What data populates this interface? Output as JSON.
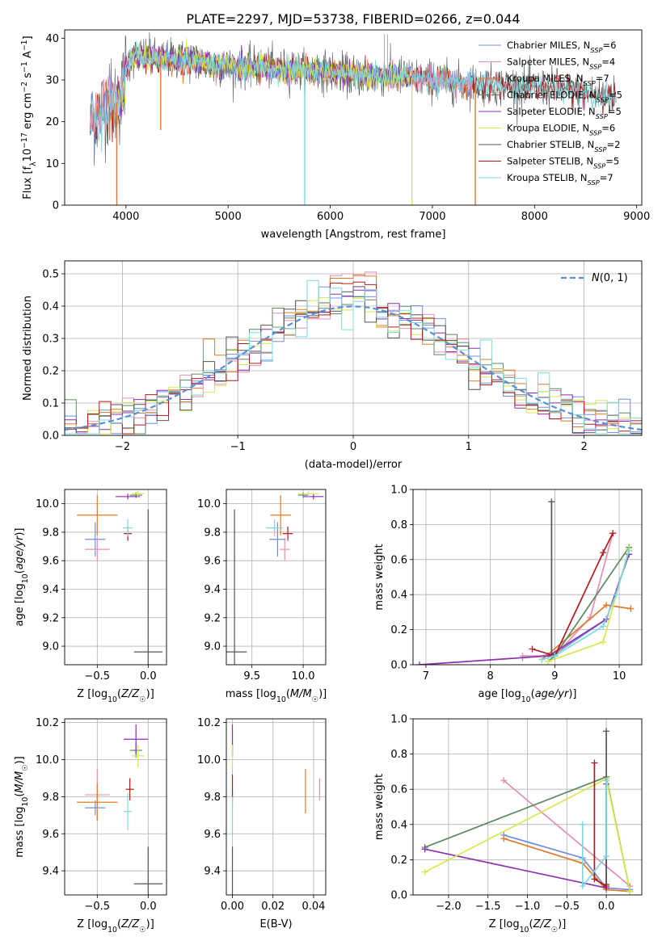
{
  "figure": {
    "title": "PLATE=2297, MJD=53738, FIBERID=0266, z=0.044"
  },
  "series_colors": {
    "Chabrier MILES": "#6e8fe0",
    "Salpeter MILES": "#e48fb8",
    "Kroupa MILES": "#e07a2a",
    "Chabrier ELODIE": "#5a8a62",
    "Salpeter ELODIE": "#8e2fb0",
    "Kroupa ELODIE": "#d8e84a",
    "Chabrier STELIB": "#555555",
    "Salpeter STELIB": "#b01c1c",
    "Kroupa STELIB": "#7dd8e0"
  },
  "chart_data": [
    {
      "id": "spectrum",
      "type": "line",
      "xlabel": "wavelength [Angstrom, rest frame]",
      "ylabel": "Flux [f_λ 10^-17 erg cm^-2 s^-1 A^-1]",
      "xlim": [
        3400,
        9050
      ],
      "ylim": [
        0,
        42
      ],
      "xticks": [
        4000,
        5000,
        6000,
        7000,
        8000,
        9000
      ],
      "yticks": [
        0,
        10,
        20,
        30,
        40
      ],
      "legend_position": "top-right",
      "legend": [
        {
          "name": "Chabrier MILES",
          "text": "Chabrier MILES, N",
          "sub": "SSP",
          "tail": "=6"
        },
        {
          "name": "Salpeter MILES",
          "text": "Salpeter MILES, N",
          "sub": "SSP",
          "tail": "=4"
        },
        {
          "name": "Kroupa MILES",
          "text": "Kroupa MILES, N",
          "sub": "SSP",
          "tail": "=7"
        },
        {
          "name": "Chabrier ELODIE",
          "text": "Chabrier ELODIE, N",
          "sub": "SSP",
          "tail": "=5"
        },
        {
          "name": "Salpeter ELODIE",
          "text": "Salpeter ELODIE, N",
          "sub": "SSP",
          "tail": "=5"
        },
        {
          "name": "Kroupa ELODIE",
          "text": "Kroupa ELODIE, N",
          "sub": "SSP",
          "tail": "=6"
        },
        {
          "name": "Chabrier STELIB",
          "text": "Chabrier STELIB, N",
          "sub": "SSP",
          "tail": "=2"
        },
        {
          "name": "Salpeter STELIB",
          "text": "Salpeter STELIB, N",
          "sub": "SSP",
          "tail": "=5"
        },
        {
          "name": "Kroupa STELIB",
          "text": "Kroupa STELIB, N",
          "sub": "SSP",
          "tail": "=7"
        }
      ],
      "continuum_x": [
        3650,
        3800,
        3950,
        4000,
        4050,
        4150,
        4300,
        4500,
        4800,
        5000,
        5300,
        5600,
        6000,
        6300,
        6600,
        7000,
        7400,
        7800,
        8200,
        8600,
        8800
      ],
      "continuum_y": [
        19,
        24,
        25,
        33,
        35,
        36,
        35,
        35,
        34,
        33,
        33,
        32.5,
        32,
        31,
        31,
        30,
        29,
        28.5,
        28,
        26.5,
        26
      ],
      "series_ranges": {
        "Chabrier MILES": [
          3650,
          7400
        ],
        "Salpeter MILES": [
          3650,
          7400
        ],
        "Kroupa MILES": [
          3650,
          7400
        ],
        "Chabrier ELODIE": [
          3900,
          6800
        ],
        "Salpeter ELODIE": [
          3900,
          6800
        ],
        "Kroupa ELODIE": [
          3900,
          6800
        ],
        "Chabrier STELIB": [
          3650,
          8800
        ],
        "Salpeter STELIB": [
          3650,
          8800
        ],
        "Kroupa STELIB": [
          3650,
          8800
        ]
      },
      "drops": [
        {
          "x": 3910,
          "to": 0,
          "series": "Kroupa MILES"
        },
        {
          "x": 4340,
          "to": 18,
          "series": "Kroupa MILES"
        },
        {
          "x": 5750,
          "to": 0,
          "series": "Kroupa STELIB"
        },
        {
          "x": 6800,
          "to": 0,
          "series": "Kroupa ELODIE"
        },
        {
          "x": 7420,
          "to": 0,
          "series": "Kroupa MILES"
        }
      ],
      "spikes": [
        {
          "x": 6530,
          "to": 41
        },
        {
          "x": 6560,
          "to": 41
        }
      ]
    },
    {
      "id": "residuals",
      "type": "histogram",
      "xlabel": "(data-model)/error",
      "ylabel": "Normed distribution",
      "xlim": [
        -2.5,
        2.5
      ],
      "ylim": [
        0,
        0.54
      ],
      "xticks": [
        -2,
        -1,
        0,
        1,
        2
      ],
      "yticks": [
        0.0,
        0.1,
        0.2,
        0.3,
        0.4,
        0.5
      ],
      "grid": true,
      "legend_position": "top-right",
      "legend_label": "N(0,1)",
      "bins": 50,
      "reference_curve": "gaussian mean 0 sigma 1",
      "peak_values": {
        "Salpeter MILES": 0.51,
        "Kroupa MILES": 0.5,
        "Salpeter STELIB": 0.48,
        "Salpeter ELODIE": 0.45,
        "Chabrier MILES": 0.43
      }
    },
    {
      "id": "age_vs_Z",
      "type": "errorbar",
      "xlabel": "Z [log10(Z/Z☉)]",
      "ylabel": "age  [log10(age/yr)]",
      "xlim": [
        -0.82,
        0.18
      ],
      "ylim": [
        8.87,
        10.1
      ],
      "xticks": [
        -0.5,
        0.0
      ],
      "yticks": [
        9.0,
        9.2,
        9.4,
        9.6,
        9.8,
        10.0
      ],
      "grid": true,
      "points": [
        {
          "series": "Chabrier MILES",
          "x": -0.52,
          "y": 9.75,
          "xerr": 0.1,
          "yerr": 0.12
        },
        {
          "series": "Salpeter MILES",
          "x": -0.5,
          "y": 9.68,
          "xerr": 0.12,
          "yerr": 0.08
        },
        {
          "series": "Kroupa MILES",
          "x": -0.5,
          "y": 9.92,
          "xerr": 0.2,
          "yerr": 0.14
        },
        {
          "series": "Chabrier ELODIE",
          "x": -0.12,
          "y": 10.06,
          "xerr": 0.06,
          "yerr": 0.02
        },
        {
          "series": "Salpeter ELODIE",
          "x": -0.2,
          "y": 10.05,
          "xerr": 0.12,
          "yerr": 0.02
        },
        {
          "series": "Kroupa ELODIE",
          "x": -0.1,
          "y": 10.07,
          "xerr": 0.06,
          "yerr": 0.02
        },
        {
          "series": "Chabrier STELIB",
          "x": 0.0,
          "y": 8.96,
          "xerr": 0.14,
          "yerr": 1.0
        },
        {
          "series": "Salpeter STELIB",
          "x": -0.2,
          "y": 9.79,
          "xerr": 0.04,
          "yerr": 0.05
        },
        {
          "series": "Kroupa STELIB",
          "x": -0.2,
          "y": 9.83,
          "xerr": 0.05,
          "yerr": 0.06
        }
      ]
    },
    {
      "id": "age_vs_mass",
      "type": "errorbar",
      "xlabel": "mass [log10(M/M☉)]",
      "ylabel": "",
      "xlim": [
        9.25,
        10.22
      ],
      "ylim": [
        8.87,
        10.1
      ],
      "xticks": [
        9.5,
        10.0
      ],
      "yticks": [
        9.0,
        9.2,
        9.4,
        9.6,
        9.8,
        10.0
      ],
      "grid": true,
      "points": [
        {
          "series": "Chabrier MILES",
          "x": 9.75,
          "y": 9.75,
          "xerr": 0.08,
          "yerr": 0.12
        },
        {
          "series": "Salpeter MILES",
          "x": 9.82,
          "y": 9.68,
          "xerr": 0.05,
          "yerr": 0.08
        },
        {
          "series": "Kroupa MILES",
          "x": 9.78,
          "y": 9.92,
          "xerr": 0.1,
          "yerr": 0.14
        },
        {
          "series": "Chabrier ELODIE",
          "x": 10.0,
          "y": 10.06,
          "xerr": 0.05,
          "yerr": 0.02
        },
        {
          "series": "Salpeter ELODIE",
          "x": 10.1,
          "y": 10.05,
          "xerr": 0.1,
          "yerr": 0.02
        },
        {
          "series": "Kroupa ELODIE",
          "x": 10.05,
          "y": 10.07,
          "xerr": 0.1,
          "yerr": 0.02
        },
        {
          "series": "Chabrier STELIB",
          "x": 9.33,
          "y": 8.96,
          "xerr": 0.12,
          "yerr": 1.0
        },
        {
          "series": "Salpeter STELIB",
          "x": 9.85,
          "y": 9.79,
          "xerr": 0.05,
          "yerr": 0.05
        },
        {
          "series": "Kroupa STELIB",
          "x": 9.72,
          "y": 9.83,
          "xerr": 0.08,
          "yerr": 0.06
        }
      ]
    },
    {
      "id": "weight_vs_age",
      "type": "line",
      "xlabel": "age  [log10(age/yr)]",
      "ylabel": "mass weight",
      "xlim": [
        6.8,
        10.35
      ],
      "ylim": [
        0,
        1.0
      ],
      "xticks": [
        7,
        8,
        9,
        10
      ],
      "yticks": [
        0.0,
        0.2,
        0.4,
        0.6,
        0.8,
        1.0
      ],
      "grid": true,
      "series": [
        {
          "name": "Chabrier MILES",
          "x": [
            8.5,
            9.0,
            9.8,
            10.15
          ],
          "y": [
            0.04,
            0.06,
            0.26,
            0.63
          ]
        },
        {
          "name": "Salpeter MILES",
          "x": [
            8.5,
            9.0,
            9.55,
            9.9
          ],
          "y": [
            0.05,
            0.05,
            0.27,
            0.75
          ]
        },
        {
          "name": "Kroupa MILES",
          "x": [
            8.8,
            9.8,
            10.18
          ],
          "y": [
            0.03,
            0.34,
            0.32
          ]
        },
        {
          "name": "Chabrier ELODIE",
          "x": [
            8.9,
            9.0,
            10.15
          ],
          "y": [
            0.02,
            0.05,
            0.67
          ]
        },
        {
          "name": "Salpeter ELODIE",
          "x": [
            6.9,
            8.9,
            9.8,
            10.15
          ],
          "y": [
            0.0,
            0.05,
            0.26,
            0.63
          ]
        },
        {
          "name": "Kroupa ELODIE",
          "x": [
            8.9,
            9.75,
            10.15
          ],
          "y": [
            0.02,
            0.13,
            0.66
          ]
        },
        {
          "name": "Chabrier STELIB",
          "x": [
            8.95,
            8.95
          ],
          "y": [
            0.06,
            0.93
          ]
        },
        {
          "name": "Salpeter STELIB",
          "x": [
            8.65,
            9.0,
            9.75,
            9.9
          ],
          "y": [
            0.09,
            0.05,
            0.64,
            0.75
          ]
        },
        {
          "name": "Kroupa STELIB",
          "x": [
            8.8,
            9.0,
            9.75,
            9.95,
            10.15
          ],
          "y": [
            0.03,
            0.05,
            0.22,
            0.4,
            0.65
          ]
        }
      ]
    },
    {
      "id": "mass_vs_Z",
      "type": "errorbar",
      "xlabel": "Z [log10(Z/Z☉)]",
      "ylabel": "mass [log10(M/M☉)]",
      "xlim": [
        -0.82,
        0.18
      ],
      "ylim": [
        9.27,
        10.22
      ],
      "xticks": [
        -0.5,
        0.0
      ],
      "yticks": [
        9.4,
        9.6,
        9.8,
        10.0,
        10.2
      ],
      "grid": true,
      "points": [
        {
          "series": "Chabrier MILES",
          "x": -0.52,
          "y": 9.74,
          "xerr": 0.1,
          "yerr": 0.04
        },
        {
          "series": "Salpeter MILES",
          "x": -0.5,
          "y": 9.81,
          "xerr": 0.12,
          "yerr": 0.14
        },
        {
          "series": "Kroupa MILES",
          "x": -0.5,
          "y": 9.77,
          "xerr": 0.2,
          "yerr": 0.1
        },
        {
          "series": "Chabrier ELODIE",
          "x": -0.12,
          "y": 10.05,
          "xerr": 0.06,
          "yerr": 0.04
        },
        {
          "series": "Salpeter ELODIE",
          "x": -0.12,
          "y": 10.11,
          "xerr": 0.12,
          "yerr": 0.08
        },
        {
          "series": "Kroupa ELODIE",
          "x": -0.1,
          "y": 10.02,
          "xerr": 0.06,
          "yerr": 0.06
        },
        {
          "series": "Chabrier STELIB",
          "x": 0.0,
          "y": 9.33,
          "xerr": 0.14,
          "yerr": 0.2
        },
        {
          "series": "Salpeter STELIB",
          "x": -0.18,
          "y": 9.84,
          "xerr": 0.04,
          "yerr": 0.06
        },
        {
          "series": "Kroupa STELIB",
          "x": -0.2,
          "y": 9.72,
          "xerr": 0.04,
          "yerr": 0.1
        }
      ]
    },
    {
      "id": "mass_vs_EBV",
      "type": "errorbar",
      "xlabel": "E(B-V)",
      "ylabel": "",
      "xlim": [
        -0.003,
        0.046
      ],
      "ylim": [
        9.27,
        10.22
      ],
      "xticks": [
        0.0,
        0.02,
        0.04
      ],
      "yticks": [
        9.4,
        9.6,
        9.8,
        10.0,
        10.2
      ],
      "grid": true,
      "points": [
        {
          "series": "Chabrier MILES",
          "x": 0.0,
          "y": 9.78,
          "xerr": 0.0,
          "yerr": 0.05
        },
        {
          "series": "Salpeter MILES",
          "x": 0.043,
          "y": 9.84,
          "xerr": 0.0,
          "yerr": 0.06
        },
        {
          "series": "Kroupa MILES",
          "x": 0.036,
          "y": 9.83,
          "xerr": 0.0,
          "yerr": 0.12
        },
        {
          "series": "Chabrier ELODIE",
          "x": 0.0,
          "y": 10.05,
          "xerr": 0.0,
          "yerr": 0.04
        },
        {
          "series": "Salpeter ELODIE",
          "x": 0.0,
          "y": 10.11,
          "xerr": 0.0,
          "yerr": 0.08
        },
        {
          "series": "Kroupa ELODIE",
          "x": 0.0,
          "y": 10.02,
          "xerr": 0.0,
          "yerr": 0.06
        },
        {
          "series": "Chabrier STELIB",
          "x": 0.0,
          "y": 9.4,
          "xerr": 0.0,
          "yerr": 0.13
        },
        {
          "series": "Salpeter STELIB",
          "x": 0.0,
          "y": 9.86,
          "xerr": 0.0,
          "yerr": 0.06
        },
        {
          "series": "Kroupa STELIB",
          "x": 0.0,
          "y": 9.7,
          "xerr": 0.0,
          "yerr": 0.1
        }
      ]
    },
    {
      "id": "weight_vs_Z",
      "type": "line",
      "xlabel": "Z [log10(Z/Z☉)]",
      "ylabel": "mass weight",
      "xlim": [
        -2.45,
        0.45
      ],
      "ylim": [
        0,
        1.0
      ],
      "xticks": [
        -2.0,
        -1.5,
        -1.0,
        -0.5,
        0.0
      ],
      "yticks": [
        0.0,
        0.2,
        0.4,
        0.6,
        0.8,
        1.0
      ],
      "grid": true,
      "series": [
        {
          "name": "Chabrier MILES",
          "x": [
            -1.3,
            -0.3,
            0.0,
            0.3
          ],
          "y": [
            0.34,
            0.21,
            0.04,
            0.03
          ]
        },
        {
          "name": "Salpeter MILES",
          "x": [
            -1.3,
            0.3
          ],
          "y": [
            0.65,
            0.05
          ]
        },
        {
          "name": "Kroupa MILES",
          "x": [
            -1.3,
            -0.3,
            0.0,
            0.3
          ],
          "y": [
            0.32,
            0.18,
            0.03,
            0.02
          ]
        },
        {
          "name": "Chabrier ELODIE",
          "x": [
            -2.3,
            0.0,
            0.3
          ],
          "y": [
            0.27,
            0.67,
            0.02
          ]
        },
        {
          "name": "Salpeter ELODIE",
          "x": [
            -2.3,
            0.0,
            0.0
          ],
          "y": [
            0.26,
            0.04,
            0.63
          ]
        },
        {
          "name": "Kroupa ELODIE",
          "x": [
            -2.3,
            0.0,
            0.3
          ],
          "y": [
            0.13,
            0.66,
            0.02
          ]
        },
        {
          "name": "Chabrier STELIB",
          "x": [
            0.0,
            0.0
          ],
          "y": [
            0.06,
            0.93
          ]
        },
        {
          "name": "Salpeter STELIB",
          "x": [
            -0.15,
            -0.15,
            0.0
          ],
          "y": [
            0.75,
            0.09,
            0.05
          ]
        },
        {
          "name": "Kroupa STELIB",
          "x": [
            -0.3,
            -0.3,
            0.0,
            0.0
          ],
          "y": [
            0.4,
            0.05,
            0.22,
            0.65
          ]
        }
      ]
    }
  ]
}
